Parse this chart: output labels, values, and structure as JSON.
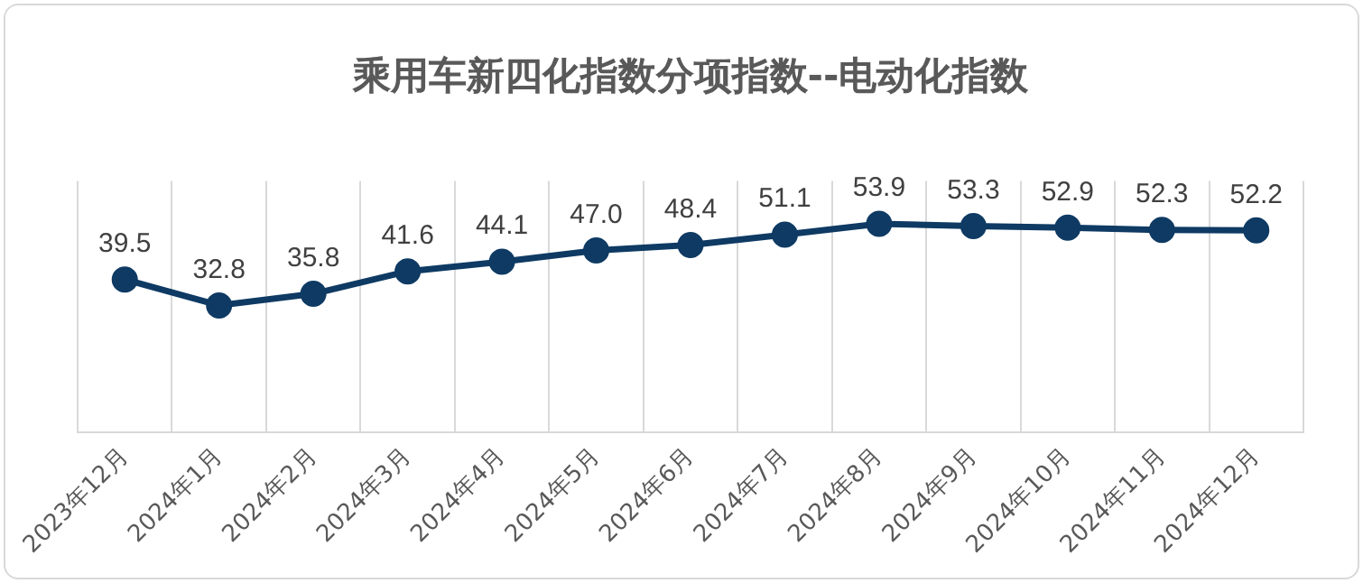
{
  "chart_data": {
    "type": "line",
    "title": "乘用车新四化指数分项指数--电动化指数",
    "categories": [
      "2023年12月",
      "2024年1月",
      "2024年2月",
      "2024年3月",
      "2024年4月",
      "2024年5月",
      "2024年6月",
      "2024年7月",
      "2024年8月",
      "2024年9月",
      "2024年10月",
      "2024年11月",
      "2024年12月"
    ],
    "series": [
      {
        "color": "#0e3a63",
        "values": [
          39.5,
          32.8,
          35.8,
          41.6,
          44.1,
          47.0,
          48.4,
          51.1,
          53.9,
          53.3,
          52.9,
          52.3,
          52.2
        ],
        "value_labels": [
          "39.5",
          "32.8",
          "35.8",
          "41.6",
          "44.1",
          "47.0",
          "48.4",
          "51.1",
          "53.9",
          "53.3",
          "52.9",
          "52.3",
          "52.2"
        ]
      }
    ],
    "ylim": [
      0,
      65
    ],
    "grid": "x",
    "tick_labels": "x",
    "marker": "circle",
    "line_style": "solid"
  }
}
